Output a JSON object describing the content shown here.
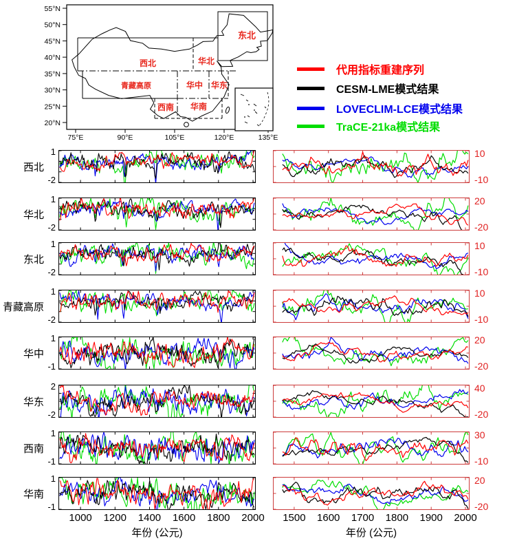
{
  "figure": {
    "map": {
      "lat_tick_labels": [
        "55°N",
        "50°N",
        "45°N",
        "40°N",
        "35°N",
        "30°N",
        "25°N",
        "20°N"
      ],
      "lon_tick_labels": [
        "75°E",
        "90°E",
        "105°E",
        "120°E",
        "135°E"
      ],
      "regions": {
        "dongbei": "东北",
        "xibei": "西北",
        "huabei": "华北",
        "qingzang": "青藏高原",
        "huazhong": "华中",
        "huadong": "华东",
        "xinan": "西南",
        "huanan": "华南"
      },
      "label_color": "#e8281e"
    },
    "legend": {
      "items": [
        {
          "label": "代用指标重建序列",
          "color": "#ff0000"
        },
        {
          "label": "CESM-LME模式结果",
          "color": "#000000"
        },
        {
          "label": "LOVECLIM-LCE模式结果",
          "color": "#0000ee"
        },
        {
          "label": "TraCE-21ka模式结果",
          "color": "#00dd00"
        }
      ]
    }
  },
  "chart_data": {
    "type": "line",
    "title": "",
    "description": "Eight regions of China (rows): proxy reconstructions vs CESM-LME, LOVECLIM-LCE and TraCE-21ka model results. Left column: standardized anomaly series ~900-2000 CE fluctuating around 0 with episodic deep negative spikes (~1100, ~1260, ~1450, ~1815 CE). Right column: smoother anomaly series ~1470-2000 CE centered mid-axis, TraCE-21ka showing the largest swings and CESM-LME dipping after ~1950.",
    "legend_position": "top-right",
    "grid": false,
    "series": [
      {
        "name": "代用指标重建序列",
        "color": "#ff0000"
      },
      {
        "name": "CESM-LME模式结果",
        "color": "#000000"
      },
      {
        "name": "LOVECLIM-LCE模式结果",
        "color": "#0000ee"
      },
      {
        "name": "TraCE-21ka模式结果",
        "color": "#00dd00"
      }
    ],
    "columns": {
      "left": {
        "x_range": [
          876,
          2012
        ],
        "x_ticks": [
          1000,
          1200,
          1400,
          1600,
          1800,
          2000
        ],
        "x_tick_labels": [
          "1000",
          "1200",
          "1400",
          "1600",
          "1800",
          "2000"
        ],
        "xlabel": "年份 (公元)",
        "frame_color": "#000000",
        "y_label_color": "#000000"
      },
      "right": {
        "x_range": [
          1440,
          2010
        ],
        "x_ticks": [
          1500,
          1600,
          1700,
          1800,
          1900,
          2000
        ],
        "x_tick_labels": [
          "1500",
          "1600",
          "1700",
          "1800",
          "1900",
          "2000"
        ],
        "xlabel": "年份 (公元)",
        "frame_color": "#cc3b3b",
        "y_label_color": "#e02020"
      }
    },
    "rows": [
      {
        "region": "西北",
        "left": {
          "ylim": [
            -2,
            1
          ],
          "ytick_labels": [
            "1",
            "-2"
          ]
        },
        "right": {
          "ylim": [
            -10,
            10
          ],
          "ytick_labels": [
            "10",
            "-10"
          ]
        }
      },
      {
        "region": "华北",
        "left": {
          "ylim": [
            -2,
            1
          ],
          "ytick_labels": [
            "1",
            "-2"
          ]
        },
        "right": {
          "ylim": [
            -20,
            20
          ],
          "ytick_labels": [
            "20",
            "-20"
          ]
        }
      },
      {
        "region": "东北",
        "left": {
          "ylim": [
            -2,
            1
          ],
          "ytick_labels": [
            "1",
            "-2"
          ]
        },
        "right": {
          "ylim": [
            -10,
            10
          ],
          "ytick_labels": [
            "10",
            "-10"
          ]
        }
      },
      {
        "region": "青藏高原",
        "left": {
          "ylim": [
            -2,
            1
          ],
          "ytick_labels": [
            "1",
            "-2"
          ]
        },
        "right": {
          "ylim": [
            -10,
            10
          ],
          "ytick_labels": [
            "10",
            "-10"
          ]
        }
      },
      {
        "region": "华中",
        "left": {
          "ylim": [
            -1,
            1
          ],
          "ytick_labels": [
            "1",
            "-1"
          ]
        },
        "right": {
          "ylim": [
            -20,
            20
          ],
          "ytick_labels": [
            "20",
            "-20"
          ]
        }
      },
      {
        "region": "华东",
        "left": {
          "ylim": [
            -2,
            2
          ],
          "ytick_labels": [
            "2",
            "-2"
          ]
        },
        "right": {
          "ylim": [
            -20,
            40
          ],
          "ytick_labels": [
            "40",
            "-20"
          ]
        }
      },
      {
        "region": "西南",
        "left": {
          "ylim": [
            -1,
            1
          ],
          "ytick_labels": [
            "1",
            "-1"
          ]
        },
        "right": {
          "ylim": [
            -10,
            30
          ],
          "ytick_labels": [
            "30",
            "-10"
          ]
        }
      },
      {
        "region": "华南",
        "left": {
          "ylim": [
            -1,
            1
          ],
          "ytick_labels": [
            "1",
            "-1"
          ]
        },
        "right": {
          "ylim": [
            -20,
            20
          ],
          "ytick_labels": [
            "20",
            "-20"
          ]
        }
      }
    ]
  }
}
